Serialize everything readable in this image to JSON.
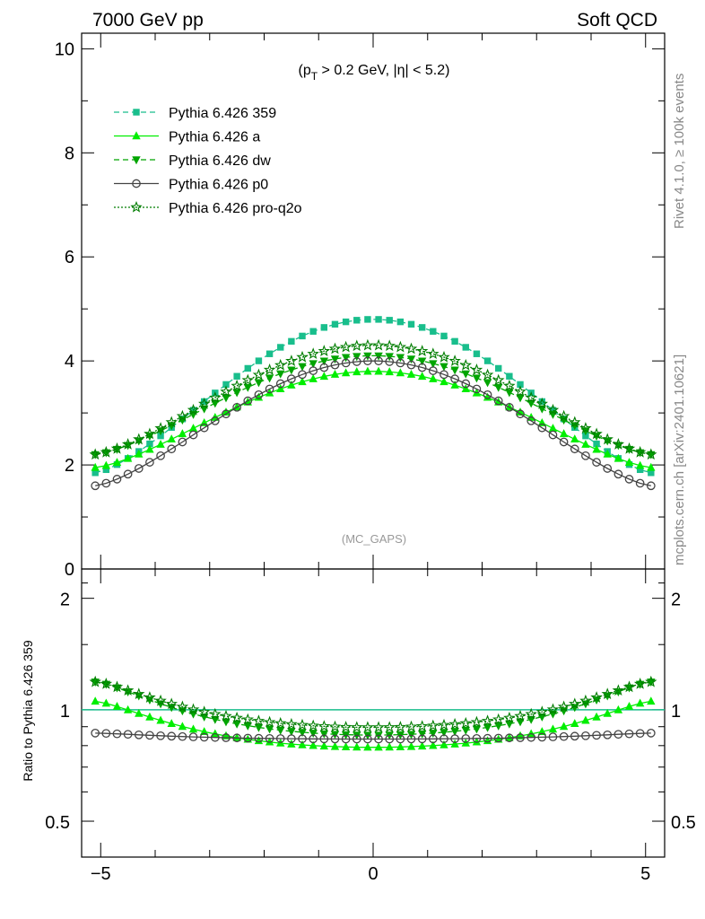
{
  "header": {
    "left_title": "7000 GeV pp",
    "right_title": "Soft QCD",
    "side_rivet": "Rivet 4.1.0, ≥ 100k events",
    "side_mcplots": "mcplots.cern.ch [arXiv:2401.10621]",
    "analysis_tag": "(MC_GAPS)"
  },
  "chart_data": {
    "type": "line",
    "cut_label": {
      "pre": "(p",
      "sub": "T",
      "post": " > 0.2 GeV, |η| < 5.2)"
    },
    "main": {
      "xlim": [
        -5.35,
        5.35
      ],
      "ylim": [
        0,
        10.3
      ],
      "yticks": [
        {
          "v": 0,
          "label": "0"
        },
        {
          "v": 2,
          "label": "2"
        },
        {
          "v": 4,
          "label": "4"
        },
        {
          "v": 6,
          "label": "6"
        },
        {
          "v": 8,
          "label": "8"
        },
        {
          "v": 10,
          "label": "10"
        }
      ]
    },
    "ratio": {
      "ylabel": "Ratio to Pythia 6.426 359",
      "ylim": [
        0.4,
        2.4
      ],
      "yticks": [
        {
          "v": 0.5,
          "label": "0.5"
        },
        {
          "v": 1,
          "label": "1"
        },
        {
          "v": 2,
          "label": "2"
        }
      ],
      "reference_line": 1
    },
    "xticks": [
      {
        "v": -5,
        "label": "−5"
      },
      {
        "v": 0,
        "label": "0"
      },
      {
        "v": 5,
        "label": "5"
      }
    ],
    "x_range": [
      -5.1,
      5.1
    ],
    "n_points": 52,
    "series": [
      {
        "name": "Pythia 6.426 359",
        "color": "#19be8c",
        "marker": "square",
        "dash": "6,4",
        "peak": 4.8,
        "edge": 1.85
      },
      {
        "name": "Pythia 6.426 a",
        "color": "#00ee00",
        "marker": "triangle-up",
        "dash": "",
        "peak": 3.8,
        "edge": 1.95
      },
      {
        "name": "Pythia 6.426 dw",
        "color": "#00a500",
        "marker": "triangle-down",
        "dash": "6,4",
        "peak": 4.1,
        "edge": 2.2
      },
      {
        "name": "Pythia 6.426 p0",
        "color": "#444444",
        "marker": "circle-open",
        "dash": "",
        "peak": 4.0,
        "edge": 1.6
      },
      {
        "name": "Pythia 6.426 pro-q2o",
        "color": "#007d00",
        "marker": "star-open",
        "dash": "2,2",
        "peak": 4.3,
        "edge": 2.2
      }
    ]
  }
}
